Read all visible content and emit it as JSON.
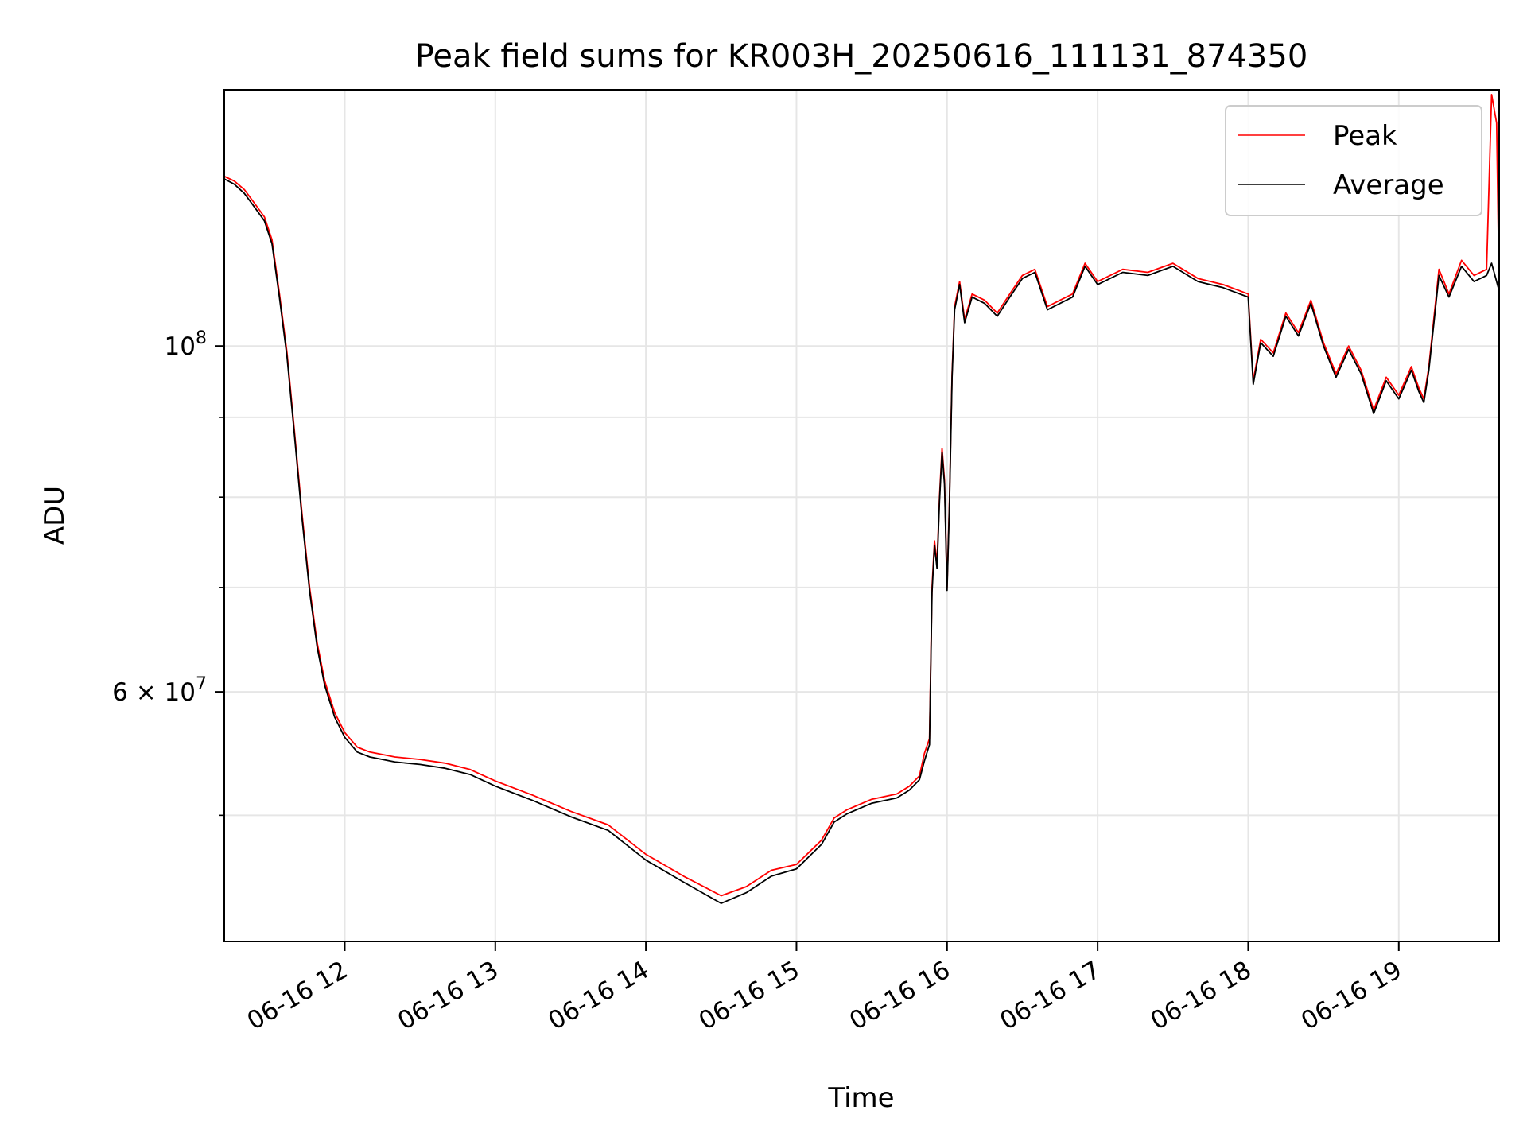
{
  "chart_data": {
    "type": "line",
    "title": "Peak field sums for KR003H_20250616_111131_874350",
    "xlabel": "Time",
    "ylabel": "ADU",
    "y_scale": "log",
    "grid": true,
    "legend_position": "top-right",
    "xlim": [
      "06-16 11:12",
      "06-16 19:40"
    ],
    "ylim": [
      41500000,
      146000000
    ],
    "x_ticks": [
      {
        "value": "06-16 12",
        "label": "06-16 12"
      },
      {
        "value": "06-16 13",
        "label": "06-16 13"
      },
      {
        "value": "06-16 14",
        "label": "06-16 14"
      },
      {
        "value": "06-16 15",
        "label": "06-16 15"
      },
      {
        "value": "06-16 16",
        "label": "06-16 16"
      },
      {
        "value": "06-16 17",
        "label": "06-16 17"
      },
      {
        "value": "06-16 18",
        "label": "06-16 18"
      },
      {
        "value": "06-16 19",
        "label": "06-16 19"
      }
    ],
    "y_ticks": [
      {
        "value": 100000000,
        "label_base": "10",
        "label_exp": "8"
      },
      {
        "value": 60000000,
        "label_base": "6 × 10",
        "label_exp": "7"
      }
    ],
    "series": [
      {
        "name": "Peak",
        "color": "#ff0000",
        "points": [
          [
            "06-16 11:12",
            128500000
          ],
          [
            "06-16 11:16",
            127600000
          ],
          [
            "06-16 11:20",
            126000000
          ],
          [
            "06-16 11:24",
            123500000
          ],
          [
            "06-16 11:28",
            121000000
          ],
          [
            "06-16 11:31",
            117000000
          ],
          [
            "06-16 11:34",
            108000000
          ],
          [
            "06-16 11:37",
            99000000
          ],
          [
            "06-16 11:40",
            88000000
          ],
          [
            "06-16 11:43",
            78000000
          ],
          [
            "06-16 11:46",
            70000000
          ],
          [
            "06-16 11:49",
            64500000
          ],
          [
            "06-16 11:52",
            61000000
          ],
          [
            "06-16 11:56",
            58200000
          ],
          [
            "06-16 12:00",
            56500000
          ],
          [
            "06-16 12:05",
            55300000
          ],
          [
            "06-16 12:10",
            54900000
          ],
          [
            "06-16 12:20",
            54500000
          ],
          [
            "06-16 12:30",
            54300000
          ],
          [
            "06-16 12:40",
            54000000
          ],
          [
            "06-16 12:50",
            53500000
          ],
          [
            "06-16 13:00",
            52600000
          ],
          [
            "06-16 13:15",
            51500000
          ],
          [
            "06-16 13:30",
            50300000
          ],
          [
            "06-16 13:45",
            49300000
          ],
          [
            "06-16 14:00",
            47200000
          ],
          [
            "06-16 14:15",
            45700000
          ],
          [
            "06-16 14:30",
            44400000
          ],
          [
            "06-16 14:40",
            45000000
          ],
          [
            "06-16 14:50",
            46100000
          ],
          [
            "06-16 15:00",
            46500000
          ],
          [
            "06-16 15:10",
            48200000
          ],
          [
            "06-16 15:15",
            49800000
          ],
          [
            "06-16 15:20",
            50400000
          ],
          [
            "06-16 15:30",
            51200000
          ],
          [
            "06-16 15:40",
            51600000
          ],
          [
            "06-16 15:45",
            52200000
          ],
          [
            "06-16 15:49",
            53000000
          ],
          [
            "06-16 15:51",
            54800000
          ],
          [
            "06-16 15:53",
            56000000
          ],
          [
            "06-16 15:54",
            70000000
          ],
          [
            "06-16 15:55",
            75000000
          ],
          [
            "06-16 15:56",
            72500000
          ],
          [
            "06-16 15:57",
            80000000
          ],
          [
            "06-16 15:58",
            86000000
          ],
          [
            "06-16 15:59",
            82000000
          ],
          [
            "06-16 16:00",
            70000000
          ],
          [
            "06-16 16:01",
            80000000
          ],
          [
            "06-16 16:02",
            96000000
          ],
          [
            "06-16 16:03",
            106000000
          ],
          [
            "06-16 16:05",
            110000000
          ],
          [
            "06-16 16:07",
            104000000
          ],
          [
            "06-16 16:10",
            108000000
          ],
          [
            "06-16 16:15",
            107000000
          ],
          [
            "06-16 16:20",
            105000000
          ],
          [
            "06-16 16:25",
            108000000
          ],
          [
            "06-16 16:30",
            111000000
          ],
          [
            "06-16 16:35",
            112000000
          ],
          [
            "06-16 16:40",
            106000000
          ],
          [
            "06-16 16:45",
            107000000
          ],
          [
            "06-16 16:50",
            108000000
          ],
          [
            "06-16 16:55",
            113000000
          ],
          [
            "06-16 17:00",
            110000000
          ],
          [
            "06-16 17:10",
            112000000
          ],
          [
            "06-16 17:20",
            111500000
          ],
          [
            "06-16 17:30",
            113000000
          ],
          [
            "06-16 17:40",
            110500000
          ],
          [
            "06-16 17:50",
            109500000
          ],
          [
            "06-16 18:00",
            108000000
          ],
          [
            "06-16 18:02",
            95000000
          ],
          [
            "06-16 18:05",
            101000000
          ],
          [
            "06-16 18:10",
            99000000
          ],
          [
            "06-16 18:15",
            105000000
          ],
          [
            "06-16 18:20",
            102000000
          ],
          [
            "06-16 18:25",
            107000000
          ],
          [
            "06-16 18:30",
            100500000
          ],
          [
            "06-16 18:35",
            96000000
          ],
          [
            "06-16 18:40",
            100000000
          ],
          [
            "06-16 18:45",
            96500000
          ],
          [
            "06-16 18:50",
            91000000
          ],
          [
            "06-16 18:55",
            95500000
          ],
          [
            "06-16 19:00",
            93000000
          ],
          [
            "06-16 19:05",
            97000000
          ],
          [
            "06-16 19:08",
            94000000
          ],
          [
            "06-16 19:10",
            92500000
          ],
          [
            "06-16 19:12",
            97000000
          ],
          [
            "06-16 19:16",
            112000000
          ],
          [
            "06-16 19:20",
            108000000
          ],
          [
            "06-16 19:25",
            113500000
          ],
          [
            "06-16 19:30",
            111000000
          ],
          [
            "06-16 19:35",
            112000000
          ],
          [
            "06-16 19:37",
            145000000
          ],
          [
            "06-16 19:39",
            139000000
          ],
          [
            "06-16 19:40",
            109000000
          ]
        ]
      },
      {
        "name": "Average",
        "color": "#000000",
        "points": [
          [
            "06-16 11:12",
            128000000
          ],
          [
            "06-16 11:16",
            127000000
          ],
          [
            "06-16 11:20",
            125300000
          ],
          [
            "06-16 11:24",
            122800000
          ],
          [
            "06-16 11:28",
            120300000
          ],
          [
            "06-16 11:31",
            116300000
          ],
          [
            "06-16 11:34",
            107400000
          ],
          [
            "06-16 11:37",
            98400000
          ],
          [
            "06-16 11:40",
            87500000
          ],
          [
            "06-16 11:43",
            77500000
          ],
          [
            "06-16 11:46",
            69600000
          ],
          [
            "06-16 11:49",
            64100000
          ],
          [
            "06-16 11:52",
            60600000
          ],
          [
            "06-16 11:56",
            57800000
          ],
          [
            "06-16 12:00",
            56100000
          ],
          [
            "06-16 12:05",
            54900000
          ],
          [
            "06-16 12:10",
            54500000
          ],
          [
            "06-16 12:20",
            54100000
          ],
          [
            "06-16 12:30",
            53900000
          ],
          [
            "06-16 12:40",
            53600000
          ],
          [
            "06-16 12:50",
            53100000
          ],
          [
            "06-16 13:00",
            52200000
          ],
          [
            "06-16 13:15",
            51100000
          ],
          [
            "06-16 13:30",
            49900000
          ],
          [
            "06-16 13:45",
            48900000
          ],
          [
            "06-16 14:00",
            46800000
          ],
          [
            "06-16 14:15",
            45300000
          ],
          [
            "06-16 14:30",
            43900000
          ],
          [
            "06-16 14:40",
            44600000
          ],
          [
            "06-16 14:50",
            45700000
          ],
          [
            "06-16 15:00",
            46200000
          ],
          [
            "06-16 15:10",
            47900000
          ],
          [
            "06-16 15:15",
            49500000
          ],
          [
            "06-16 15:20",
            50100000
          ],
          [
            "06-16 15:30",
            50900000
          ],
          [
            "06-16 15:40",
            51300000
          ],
          [
            "06-16 15:45",
            51900000
          ],
          [
            "06-16 15:49",
            52700000
          ],
          [
            "06-16 15:51",
            54200000
          ],
          [
            "06-16 15:53",
            55500000
          ],
          [
            "06-16 15:54",
            69500000
          ],
          [
            "06-16 15:55",
            74500000
          ],
          [
            "06-16 15:56",
            72000000
          ],
          [
            "06-16 15:57",
            79500000
          ],
          [
            "06-16 15:58",
            85500000
          ],
          [
            "06-16 15:59",
            81500000
          ],
          [
            "06-16 16:00",
            69700000
          ],
          [
            "06-16 16:01",
            79500000
          ],
          [
            "06-16 16:02",
            95500000
          ],
          [
            "06-16 16:03",
            105500000
          ],
          [
            "06-16 16:05",
            109500000
          ],
          [
            "06-16 16:07",
            103500000
          ],
          [
            "06-16 16:10",
            107500000
          ],
          [
            "06-16 16:15",
            106500000
          ],
          [
            "06-16 16:20",
            104500000
          ],
          [
            "06-16 16:25",
            107500000
          ],
          [
            "06-16 16:30",
            110500000
          ],
          [
            "06-16 16:35",
            111500000
          ],
          [
            "06-16 16:40",
            105500000
          ],
          [
            "06-16 16:45",
            106500000
          ],
          [
            "06-16 16:50",
            107500000
          ],
          [
            "06-16 16:55",
            112500000
          ],
          [
            "06-16 17:00",
            109500000
          ],
          [
            "06-16 17:10",
            111500000
          ],
          [
            "06-16 17:20",
            111000000
          ],
          [
            "06-16 17:30",
            112500000
          ],
          [
            "06-16 17:40",
            110000000
          ],
          [
            "06-16 17:50",
            109000000
          ],
          [
            "06-16 18:00",
            107500000
          ],
          [
            "06-16 18:02",
            94500000
          ],
          [
            "06-16 18:05",
            100500000
          ],
          [
            "06-16 18:10",
            98500000
          ],
          [
            "06-16 18:15",
            104500000
          ],
          [
            "06-16 18:20",
            101500000
          ],
          [
            "06-16 18:25",
            106500000
          ],
          [
            "06-16 18:30",
            100000000
          ],
          [
            "06-16 18:35",
            95500000
          ],
          [
            "06-16 18:40",
            99500000
          ],
          [
            "06-16 18:45",
            96000000
          ],
          [
            "06-16 18:50",
            90500000
          ],
          [
            "06-16 18:55",
            95000000
          ],
          [
            "06-16 19:00",
            92500000
          ],
          [
            "06-16 19:05",
            96500000
          ],
          [
            "06-16 19:08",
            93500000
          ],
          [
            "06-16 19:10",
            92000000
          ],
          [
            "06-16 19:12",
            96500000
          ],
          [
            "06-16 19:16",
            111000000
          ],
          [
            "06-16 19:20",
            107500000
          ],
          [
            "06-16 19:25",
            112500000
          ],
          [
            "06-16 19:30",
            110000000
          ],
          [
            "06-16 19:35",
            111000000
          ],
          [
            "06-16 19:37",
            113000000
          ],
          [
            "06-16 19:39",
            110000000
          ],
          [
            "06-16 19:40",
            108500000
          ]
        ]
      }
    ]
  }
}
